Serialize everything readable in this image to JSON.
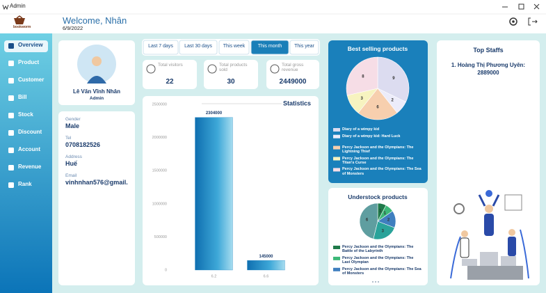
{
  "window": {
    "title": "Admin"
  },
  "header": {
    "logo_text": "bookworm",
    "welcome": "Welcome, Nhân",
    "date": "6/9/2022"
  },
  "sidebar": {
    "items": [
      "Overview",
      "Product",
      "Customer",
      "Bill",
      "Stock",
      "Discount",
      "Account",
      "Revenue",
      "Rank"
    ],
    "active": 0
  },
  "profile": {
    "name": "Lê Văn Vĩnh Nhân",
    "role": "Admin"
  },
  "details": [
    {
      "label": "Gender",
      "value": "Male"
    },
    {
      "label": "Tel",
      "value": "0708182526"
    },
    {
      "label": "Address",
      "value": "Huế"
    },
    {
      "label": "Email",
      "value": "vinhnhan576@gmail."
    }
  ],
  "filters": {
    "options": [
      "Last 7 days",
      "Last 30 days",
      "This week",
      "This month",
      "This year"
    ],
    "active": 3
  },
  "stats": [
    {
      "label": "Total visitors",
      "value": 22
    },
    {
      "label": "Total products sold",
      "value": 30
    },
    {
      "label": "Total gross revenue",
      "value": 2449000
    }
  ],
  "statistics": {
    "type": "bar",
    "title": "Statistics",
    "categories": [
      "6.2",
      "6.6"
    ],
    "values": [
      2304000,
      145000
    ],
    "ylim": [
      0,
      2500000
    ],
    "yticks": [
      0,
      500000,
      1000000,
      1500000,
      2000000,
      2500000
    ],
    "color": "#1a7fc0",
    "grid": false
  },
  "best_selling": {
    "type": "pie",
    "title": "Best selling products",
    "categories": [
      "Diary of a wimpy kid",
      "Diary of a wimpy kid: Hard Luck",
      "Percy Jackson and the Olympians: The Lightning Thief",
      "Percy Jackson and the Olympians: The Titan's Curse",
      "Percy Jackson and the Olympians: The Sea of Monsters"
    ],
    "values": [
      9,
      2,
      6,
      3,
      8
    ],
    "colors": [
      "#dcdcf0",
      "#ececfa",
      "#f7cfae",
      "#f7f3c0",
      "#f6dde6"
    ]
  },
  "understock": {
    "type": "pie",
    "title": "Understock products",
    "categories": [
      "Percy Jackson and the Olympians: The Battle of the Labyrinth",
      "Percy Jackson and the Olympians: The Last Olympian",
      "Percy Jackson and the Olympians: The Sea of Monsters",
      null,
      null
    ],
    "values": [
      1,
      1,
      2,
      3,
      6
    ],
    "colors": [
      "#1f7a4a",
      "#3cb878",
      "#3f7fbf",
      "#2aa39a",
      "#5f9ea0"
    ]
  },
  "top_staffs": {
    "title": "Top Staffs",
    "entries": [
      {
        "name": "1. Hoàng Thị Phương Uyên:",
        "value": 2889000
      }
    ]
  }
}
